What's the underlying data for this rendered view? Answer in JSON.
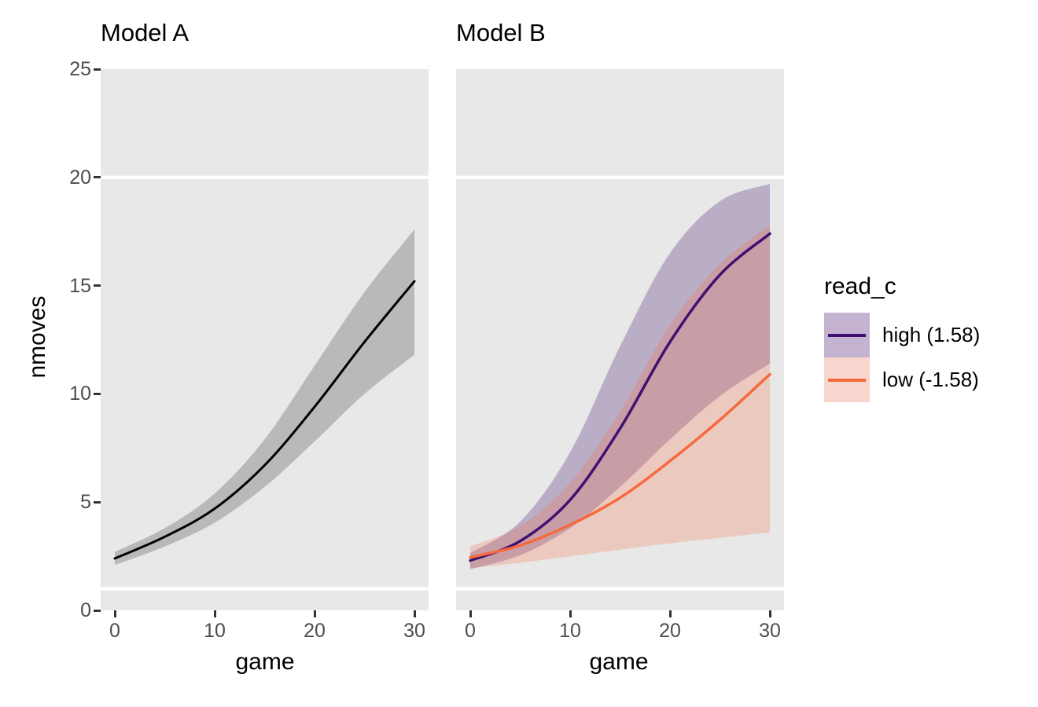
{
  "figure": {
    "background": "#FFFFFF",
    "panel_background": "#E8E8E8",
    "gridline_color": "#FFFFFF",
    "tick_mark_color": "#333333",
    "tick_label_color": "#4D4D4D"
  },
  "y_axis": {
    "title": "nmoves",
    "ticks": [
      {
        "label": "25",
        "value": 25
      },
      {
        "label": "20",
        "value": 20
      },
      {
        "label": "15",
        "value": 15
      },
      {
        "label": "10",
        "value": 10
      },
      {
        "label": "5",
        "value": 5
      },
      {
        "label": "0",
        "value": 0
      }
    ]
  },
  "x_axis": {
    "title": "game",
    "ticks": [
      {
        "label": "0",
        "value": 0
      },
      {
        "label": "10",
        "value": 10
      },
      {
        "label": "20",
        "value": 20
      },
      {
        "label": "30",
        "value": 30
      }
    ]
  },
  "legend": {
    "title": "read_c",
    "entries": [
      {
        "label": "high (1.58)",
        "line_color": "#401170",
        "fill_color": "#C4B2D1"
      },
      {
        "label": "low (-1.58)",
        "line_color": "#F6693E",
        "fill_color": "#F9D6CD"
      }
    ]
  },
  "chart_data": [
    {
      "type": "line",
      "title": "Model A",
      "xlabel": "game",
      "ylabel": "nmoves",
      "xlim": [
        0,
        30
      ],
      "ylim": [
        0,
        25
      ],
      "grid": "y-gridlines at 1 and 20 only",
      "gridlines_y": [
        1,
        20
      ],
      "legend_position": "none",
      "x": [
        0,
        5,
        10,
        15,
        20,
        25,
        30
      ],
      "series": [
        {
          "name": "fit",
          "line_color": "#000000",
          "line_width": 3,
          "values": [
            2.4,
            3.4,
            4.7,
            6.7,
            9.4,
            12.4,
            15.2
          ],
          "band_upper": [
            2.7,
            3.8,
            5.4,
            7.9,
            11.3,
            14.7,
            17.6
          ],
          "band_lower": [
            2.1,
            2.95,
            4.05,
            5.7,
            7.8,
            10.0,
            11.8
          ],
          "band_color": "#B9B9B9",
          "band_alpha": 1
        }
      ]
    },
    {
      "type": "line",
      "title": "Model B",
      "xlabel": "game",
      "ylabel": "nmoves",
      "xlim": [
        0,
        30
      ],
      "ylim": [
        0,
        25
      ],
      "grid": "y-gridlines at 1 and 20 only",
      "gridlines_y": [
        1,
        20
      ],
      "legend_position": "right",
      "x": [
        0,
        5,
        10,
        15,
        20,
        25,
        30
      ],
      "series": [
        {
          "name": "high (1.58)",
          "line_color": "#401170",
          "line_width": 3.5,
          "values": [
            2.3,
            3.2,
            5.1,
            8.4,
            12.4,
            15.5,
            17.4
          ],
          "band_upper": [
            2.65,
            4.1,
            7.3,
            12.2,
            16.5,
            18.9,
            19.7
          ],
          "band_lower": [
            1.9,
            2.55,
            3.8,
            5.7,
            7.9,
            9.9,
            11.4
          ],
          "band_color": "rgba(64,17,112,0.27)"
        },
        {
          "name": "low (-1.58)",
          "line_color": "#F6693E",
          "line_width": 3.5,
          "values": [
            2.45,
            3.0,
            3.95,
            5.2,
            6.9,
            8.8,
            10.9
          ],
          "band_upper": [
            2.95,
            3.9,
            5.9,
            9.2,
            13.2,
            16.0,
            17.8
          ],
          "band_lower": [
            1.95,
            2.2,
            2.5,
            2.8,
            3.1,
            3.35,
            3.6
          ],
          "band_color": "rgba(246,106,69,0.25)"
        }
      ]
    }
  ]
}
